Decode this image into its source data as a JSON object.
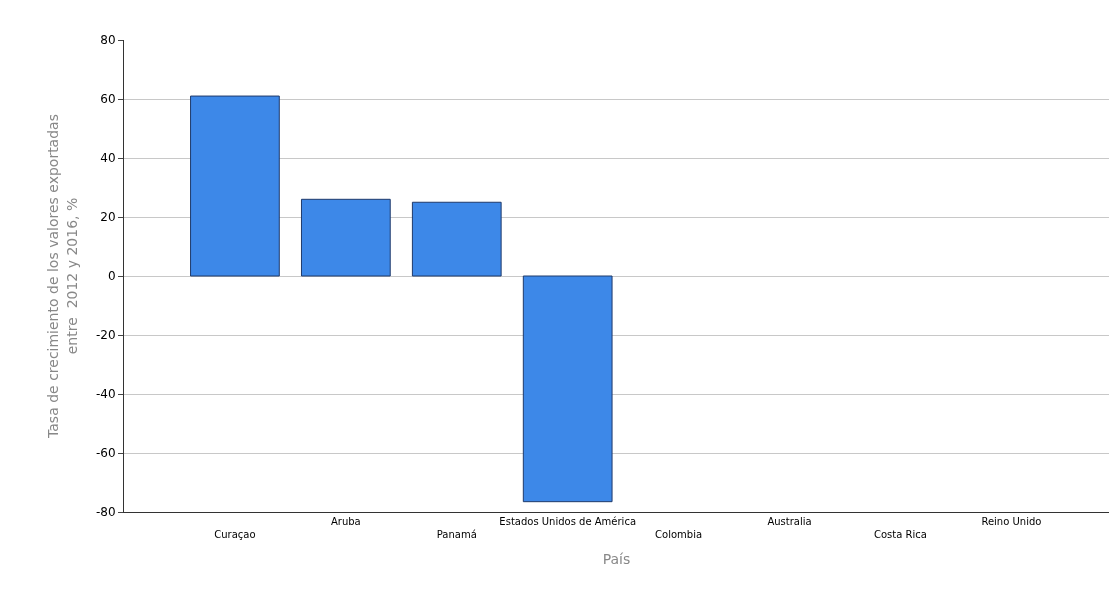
{
  "chart_data": {
    "type": "bar",
    "xlabel": "País",
    "ylabel": "Tasa de crecimiento de los valores exportadas\nentre  2012 y 2016, %",
    "categories": [
      "Curaçao",
      "Aruba",
      "Panamá",
      "Estados Unidos de América",
      "Colombia",
      "Australia",
      "Costa Rica",
      "Reino Unido"
    ],
    "values": [
      61,
      26,
      25,
      -76.5,
      null,
      null,
      null,
      null
    ],
    "color": "#3d88e8",
    "ylim": [
      -80,
      80
    ],
    "yticks": [
      -80,
      -60,
      -40,
      -20,
      0,
      20,
      40,
      60,
      80
    ],
    "grid": "y"
  }
}
